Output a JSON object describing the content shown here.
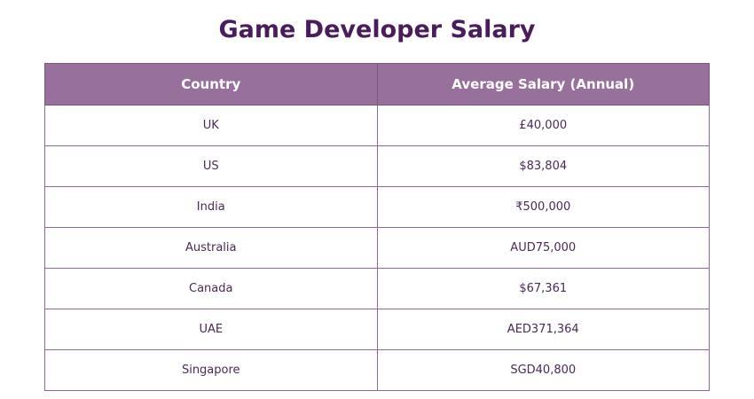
{
  "header": {
    "title": "Game Developer Salary"
  },
  "table": {
    "columns": [
      "Country",
      "Average Salary (Annual)"
    ],
    "rows": [
      [
        "UK",
        "£40,000"
      ],
      [
        "US",
        "$83,804"
      ],
      [
        "India",
        "₹500,000"
      ],
      [
        "Australia",
        "AUD75,000"
      ],
      [
        "Canada",
        "$67,361"
      ],
      [
        "UAE",
        "AED371,364"
      ],
      [
        "Singapore",
        "SGD40,800"
      ]
    ]
  }
}
